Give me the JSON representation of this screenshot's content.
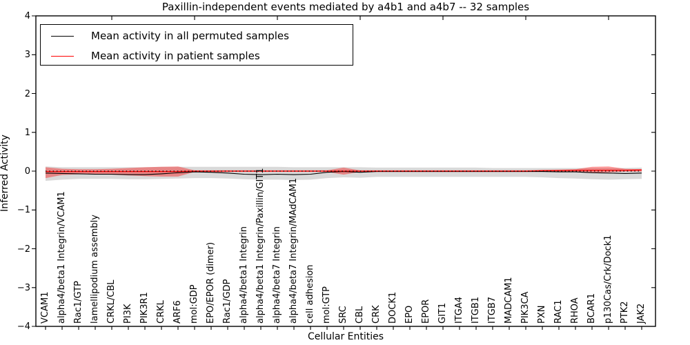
{
  "title": "Paxillin-independent events mediated by a4b1 and a4b7 -- 32 samples",
  "axes": {
    "ylabel": "Inferred Activity",
    "xlabel": "Cellular Entities",
    "ytick_labels": [
      "4",
      "3",
      "2",
      "1",
      "0",
      "−1",
      "−2",
      "−3",
      "−4"
    ],
    "ytick_values": [
      4,
      3,
      2,
      1,
      0,
      -1,
      -2,
      -3,
      -4
    ]
  },
  "legend": {
    "items": [
      {
        "label": "Mean activity in all permuted samples",
        "color": "#000000"
      },
      {
        "label": "Mean activity in patient samples",
        "color": "#ff0000"
      }
    ]
  },
  "colors": {
    "permuted_line": "#000000",
    "permuted_band": "rgba(165,165,165,0.42)",
    "patient_line": "#ff0000",
    "patient_band": "rgba(255,0,0,0.38)",
    "zero_line": "#000000",
    "frame": "#000000"
  },
  "chart_data": {
    "type": "line",
    "title": "Paxillin-independent events mediated by a4b1 and a4b7 -- 32 samples",
    "xlabel": "Cellular Entities",
    "ylabel": "Inferred Activity",
    "ylim": [
      -4,
      4
    ],
    "grid": false,
    "legend_position": "upper left",
    "zero_line": {
      "y": 0,
      "style": "dotted",
      "color": "#000000"
    },
    "categories": [
      "VCAM1",
      "alpha4/beta1 Integrin/VCAM1",
      "Rac1/GTP",
      "lamellipodium assembly",
      "CRKL/CBL",
      "PI3K",
      "PIK3R1",
      "CRKL",
      "ARF6",
      "mol:GDP",
      "EPO/EPOR (dimer)",
      "Rac1/GDP",
      "alpha4/beta1 Integrin",
      "alpha4/beta1 Integrin/Paxillin/GIT1",
      "alpha4/beta7 Integrin",
      "alpha4/beta7 Integrin/MAdCAM1",
      "cell adhesion",
      "mol:GTP",
      "SRC",
      "CBL",
      "CRK",
      "DOCK1",
      "EPO",
      "EPOR",
      "GIT1",
      "ITGA4",
      "ITGB1",
      "ITGB7",
      "MADCAM1",
      "PIK3CA",
      "PXN",
      "RAC1",
      "RHOA",
      "BCAR1",
      "p130Cas/Crk/Dock1",
      "PTK2",
      "JAK2"
    ],
    "series": [
      {
        "key": "pm",
        "name": "Mean activity in all permuted samples",
        "role": "line",
        "color": "#000000",
        "values": [
          -0.05,
          -0.06,
          -0.07,
          -0.08,
          -0.08,
          -0.09,
          -0.09,
          -0.07,
          -0.04,
          -0.02,
          -0.03,
          -0.05,
          -0.08,
          -0.09,
          -0.08,
          -0.09,
          -0.08,
          -0.03,
          -0.01,
          -0.03,
          -0.01,
          -0.01,
          -0.01,
          -0.01,
          -0.01,
          -0.01,
          -0.01,
          -0.01,
          -0.01,
          -0.01,
          -0.01,
          -0.02,
          -0.02,
          -0.04,
          -0.05,
          -0.06,
          -0.05
        ]
      },
      {
        "key": "pu",
        "name": "Permuted samples band upper (mean+std)",
        "role": "band-upper",
        "color": "#d3d3d3",
        "values": [
          0.12,
          0.1,
          0.1,
          0.1,
          0.1,
          0.1,
          0.1,
          0.11,
          0.11,
          0.11,
          0.11,
          0.11,
          0.11,
          0.11,
          0.11,
          0.1,
          0.1,
          0.1,
          0.1,
          0.1,
          0.09,
          0.09,
          0.09,
          0.09,
          0.09,
          0.09,
          0.09,
          0.08,
          0.08,
          0.08,
          0.08,
          0.08,
          0.08,
          0.08,
          0.08,
          0.08,
          0.09
        ]
      },
      {
        "key": "pl",
        "name": "Permuted samples band lower (mean-std)",
        "role": "band-lower",
        "color": "#d3d3d3",
        "values": [
          -0.25,
          -0.22,
          -0.2,
          -0.2,
          -0.2,
          -0.21,
          -0.21,
          -0.2,
          -0.19,
          -0.18,
          -0.18,
          -0.19,
          -0.21,
          -0.22,
          -0.22,
          -0.23,
          -0.22,
          -0.18,
          -0.16,
          -0.17,
          -0.15,
          -0.15,
          -0.15,
          -0.15,
          -0.15,
          -0.15,
          -0.15,
          -0.15,
          -0.15,
          -0.15,
          -0.16,
          -0.18,
          -0.19,
          -0.21,
          -0.22,
          -0.21,
          -0.2
        ]
      },
      {
        "key": "tm",
        "name": "Mean activity in patient samples",
        "role": "line",
        "color": "#ff0000",
        "values": [
          -0.01,
          -0.01,
          -0.01,
          -0.01,
          -0.01,
          -0.01,
          -0.01,
          -0.01,
          -0.01,
          0,
          0,
          0,
          0,
          0,
          0,
          0,
          0,
          0,
          0,
          0,
          0,
          0,
          0,
          0,
          0,
          0,
          0,
          0,
          0,
          0,
          0.01,
          0.01,
          0.02,
          0.02,
          0.02,
          0.02,
          0.03
        ]
      },
      {
        "key": "tu",
        "name": "Patient samples band upper (mean+std)",
        "role": "band-upper",
        "color": "#f08080",
        "values": [
          0.1,
          0.06,
          0.05,
          0.05,
          0.06,
          0.08,
          0.1,
          0.11,
          0.12,
          0.02,
          0.02,
          0.02,
          0.02,
          0.02,
          0.02,
          0.02,
          0.02,
          0.02,
          0.09,
          0.02,
          0.02,
          0.02,
          0.02,
          0.02,
          0.02,
          0.02,
          0.02,
          0.02,
          0.02,
          0.02,
          0.03,
          0.04,
          0.05,
          0.11,
          0.12,
          0.06,
          0.05
        ]
      },
      {
        "key": "tl",
        "name": "Patient samples band lower (mean-std)",
        "role": "band-lower",
        "color": "#f08080",
        "values": [
          -0.18,
          -0.1,
          -0.08,
          -0.08,
          -0.09,
          -0.11,
          -0.13,
          -0.14,
          -0.14,
          -0.02,
          -0.03,
          -0.02,
          -0.02,
          -0.02,
          -0.02,
          -0.02,
          -0.02,
          -0.02,
          -0.09,
          -0.02,
          -0.02,
          -0.02,
          -0.02,
          -0.02,
          -0.02,
          -0.02,
          -0.02,
          -0.02,
          -0.02,
          -0.02,
          -0.01,
          -0.01,
          -0.01,
          -0.04,
          -0.03,
          -0.01,
          -0.01
        ]
      }
    ],
    "top_major_tick_every": 5
  }
}
